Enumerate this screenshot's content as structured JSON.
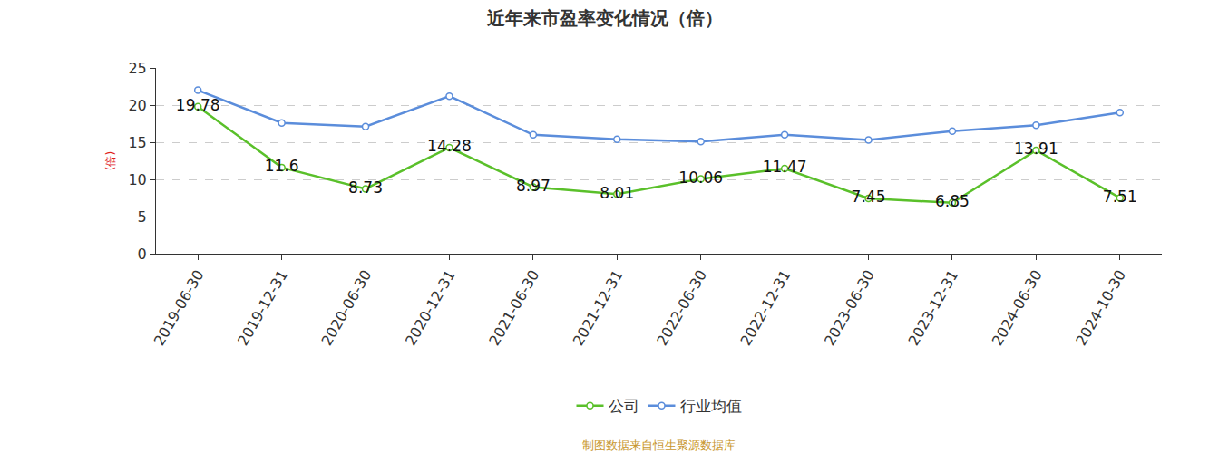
{
  "chart_data": {
    "type": "line",
    "title": "近年来市盈率变化情况（倍）",
    "y_label": "(倍)",
    "categories": [
      "2019-06-30",
      "2019-12-31",
      "2020-06-30",
      "2020-12-31",
      "2021-06-30",
      "2021-12-31",
      "2022-06-30",
      "2022-12-31",
      "2023-06-30",
      "2023-12-31",
      "2024-06-30",
      "2024-10-30"
    ],
    "series": [
      {
        "name": "公司",
        "color": "#5ac02a",
        "marker": "circle",
        "line_style": "solid",
        "data_labels": true,
        "values": [
          19.78,
          11.6,
          8.73,
          14.28,
          8.97,
          8.01,
          10.06,
          11.47,
          7.45,
          6.85,
          13.91,
          7.51
        ]
      },
      {
        "name": "行业均值",
        "color": "#5b8ddb",
        "marker": "circle",
        "line_style": "solid",
        "data_labels": false,
        "values": [
          22.0,
          17.6,
          17.1,
          21.2,
          16.0,
          15.4,
          15.1,
          16.0,
          15.3,
          16.5,
          17.3,
          19.0
        ]
      }
    ],
    "ylim": [
      0,
      25
    ],
    "yticks": [
      0,
      5,
      10,
      15,
      20,
      25
    ],
    "grid": true,
    "legend": "bottom",
    "annotations": [
      "制图数据来自恒生聚源数据库"
    ]
  }
}
